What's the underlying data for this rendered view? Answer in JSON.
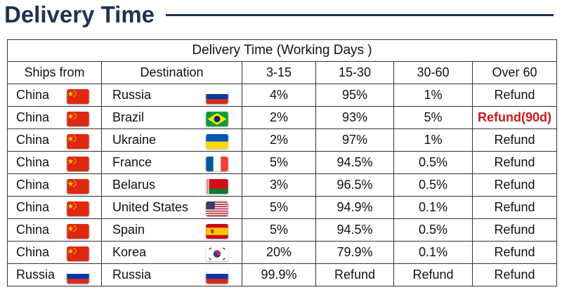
{
  "page": {
    "title": "Delivery Time"
  },
  "table": {
    "caption": "Delivery Time (Working Days )",
    "headers": [
      "Ships from",
      "Destination",
      "3-15",
      "15-30",
      "30-60",
      "Over 60"
    ],
    "rows": [
      {
        "from": "China",
        "from_flag": "china-flag-icon",
        "dest": "Russia",
        "dest_flag": "russia-flag-icon",
        "c1": "4%",
        "c2": "95%",
        "c3": "1%",
        "c4": "Refund"
      },
      {
        "from": "China",
        "from_flag": "china-flag-icon",
        "dest": "Brazil",
        "dest_flag": "brazil-flag-icon",
        "c1": "2%",
        "c2": "93%",
        "c3": "5%",
        "c4": "Refund(90d)"
      },
      {
        "from": "China",
        "from_flag": "china-flag-icon",
        "dest": "Ukraine",
        "dest_flag": "ukraine-flag-icon",
        "c1": "2%",
        "c2": "97%",
        "c3": "1%",
        "c4": "Refund"
      },
      {
        "from": "China",
        "from_flag": "china-flag-icon",
        "dest": "France",
        "dest_flag": "france-flag-icon",
        "c1": "5%",
        "c2": "94.5%",
        "c3": "0.5%",
        "c4": "Refund"
      },
      {
        "from": "China",
        "from_flag": "china-flag-icon",
        "dest": "Belarus",
        "dest_flag": "belarus-flag-icon",
        "c1": "3%",
        "c2": "96.5%",
        "c3": "0.5%",
        "c4": "Refund"
      },
      {
        "from": "China",
        "from_flag": "china-flag-icon",
        "dest": "United States",
        "dest_flag": "usa-flag-icon",
        "c1": "5%",
        "c2": "94.9%",
        "c3": "0.1%",
        "c4": "Refund"
      },
      {
        "from": "China",
        "from_flag": "china-flag-icon",
        "dest": "Spain",
        "dest_flag": "spain-flag-icon",
        "c1": "5%",
        "c2": "94.5%",
        "c3": "0.5%",
        "c4": "Refund"
      },
      {
        "from": "China",
        "from_flag": "china-flag-icon",
        "dest": "Korea",
        "dest_flag": "korea-flag-icon",
        "c1": "20%",
        "c2": "79.9%",
        "c3": "0.1%",
        "c4": "Refund"
      },
      {
        "from": "Russia",
        "from_flag": "russia-flag-icon",
        "dest": "Russia",
        "dest_flag": "russia-flag-icon",
        "c1": "99.9%",
        "c2": "Refund",
        "c3": "Refund",
        "c4": "Refund"
      }
    ]
  },
  "colors": {
    "title": "#1f3350",
    "highlight": "#cc1a1a",
    "border": "#333333"
  }
}
